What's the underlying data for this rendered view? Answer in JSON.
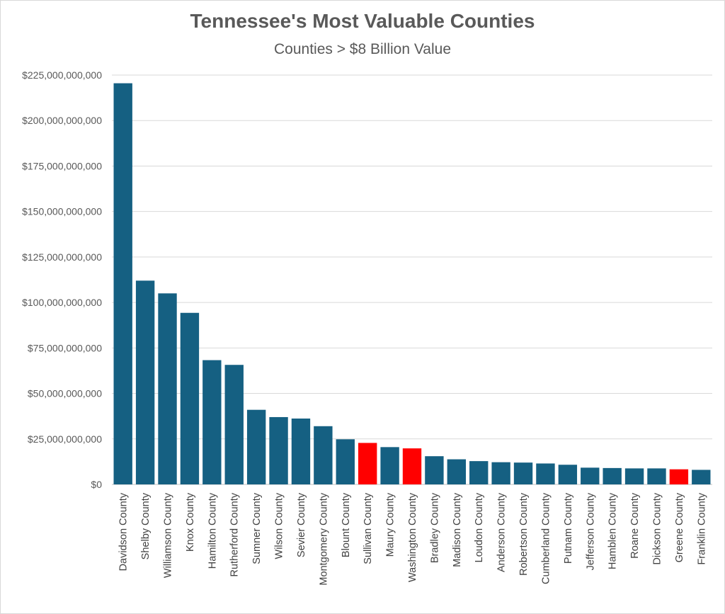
{
  "chart_data": {
    "type": "bar",
    "title": "Tennessee's Most Valuable Counties",
    "subtitle": "Counties > $8 Billion Value",
    "xlabel": "",
    "ylabel": "",
    "ylim": [
      0,
      225000000000
    ],
    "yticks": [
      "$0",
      "$25,000,000,000",
      "$50,000,000,000",
      "$75,000,000,000",
      "$100,000,000,000",
      "$125,000,000,000",
      "$150,000,000,000",
      "$175,000,000,000",
      "$200,000,000,000",
      "$225,000,000,000"
    ],
    "grid": true,
    "legend": "none",
    "categories": [
      "Davidson County",
      "Shelby County",
      "Williamson County",
      "Knox County",
      "Hamilton County",
      "Rutherford County",
      "Sumner County",
      "Wilson County",
      "Sevier County",
      "Montgomery County",
      "Blount County",
      "Sullivan County",
      "Maury County",
      "Washington County",
      "Bradley County",
      "Madison County",
      "Loudon County",
      "Anderson County",
      "Robertson County",
      "Cumberland County",
      "Putnam County",
      "Jefferson County",
      "Hamblen County",
      "Roane County",
      "Dickson County",
      "Greene County",
      "Franklin County"
    ],
    "values": [
      220500000000,
      112000000000,
      105000000000,
      94300000000,
      68300000000,
      65700000000,
      41000000000,
      37000000000,
      36200000000,
      32000000000,
      24800000000,
      22800000000,
      20500000000,
      19800000000,
      15500000000,
      13800000000,
      12800000000,
      12200000000,
      12000000000,
      11500000000,
      10800000000,
      9200000000,
      9000000000,
      8800000000,
      8800000000,
      8300000000,
      8000000000
    ],
    "highlighted": [
      "Sullivan County",
      "Washington County",
      "Greene County"
    ],
    "colors": {
      "default": "#156082",
      "highlight": "#ff0000",
      "grid": "#d9d9d9",
      "axis": "#bfbfbf"
    }
  }
}
